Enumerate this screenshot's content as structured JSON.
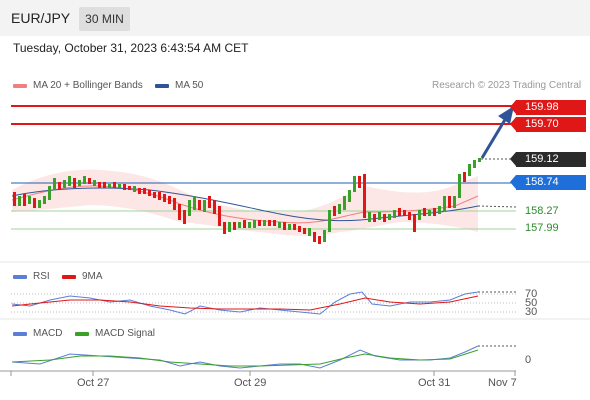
{
  "header": {
    "symbol": "EUR/JPY",
    "timeframe": "30 MIN"
  },
  "datetime": "Tuesday, October 31, 2023 6:43:54 AM CET",
  "legend_main": [
    {
      "label": "MA 20 + Bollinger Bands",
      "color": "#f08080"
    },
    {
      "label": "MA 50",
      "color": "#2f5597"
    }
  ],
  "credit": "Research © 2023 Trading Central",
  "levels": {
    "resistance2": "159.98",
    "resistance1": "159.70",
    "last": "159.12",
    "pivot": "158.74",
    "support1": "158.27",
    "support2": "157.99"
  },
  "legend_rsi": [
    {
      "label": "RSI",
      "color": "#5b7fd6"
    },
    {
      "label": "9MA",
      "color": "#e01717"
    }
  ],
  "rsi_levels": [
    "70",
    "50",
    "30"
  ],
  "legend_macd": [
    {
      "label": "MACD",
      "color": "#5b7fd6"
    },
    {
      "label": "MACD Signal",
      "color": "#3aa02a"
    }
  ],
  "macd_zero": "0",
  "x_axis": [
    "Oct 27",
    "Oct 29",
    "Oct 31",
    "Nov 7"
  ],
  "colors": {
    "bull": "#3aa02a",
    "bear": "#e01717",
    "band": "#fde3e3",
    "ma50": "#2f5597",
    "ma20": "#f08080"
  }
}
